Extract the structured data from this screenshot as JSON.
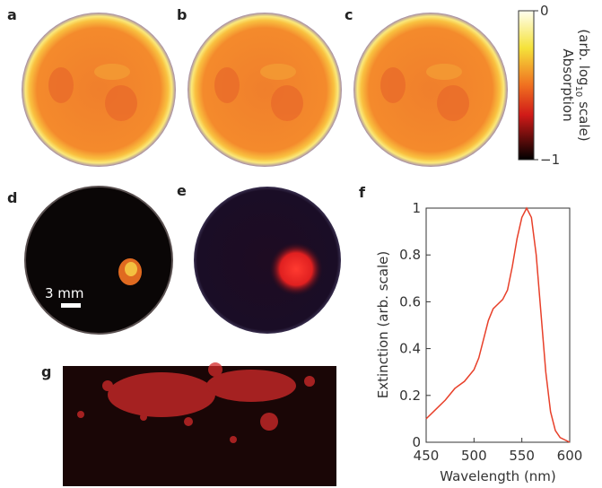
{
  "panels": {
    "a": "a",
    "b": "b",
    "c": "c",
    "d": "d",
    "e": "e",
    "f": "f",
    "g": "g"
  },
  "colorbar": {
    "title_line1": "Absorption",
    "title_line2_pre": "(arb. log",
    "title_line2_sub": "10",
    "title_line2_post": " scale)",
    "ticks": [
      0,
      {
        "value": -1,
        "label": "−1"
      }
    ],
    "lim": [
      -1,
      0
    ]
  },
  "scale_bar": "3 mm",
  "chart_data": {
    "type": "line",
    "xlabel": "Wavelength (nm)",
    "ylabel": "Extinction (arb. scale)",
    "x": [
      450,
      460,
      470,
      480,
      490,
      500,
      505,
      510,
      515,
      520,
      525,
      530,
      535,
      540,
      545,
      550,
      555,
      560,
      565,
      570,
      575,
      580,
      585,
      590,
      600
    ],
    "values": [
      0.1,
      0.14,
      0.18,
      0.23,
      0.26,
      0.31,
      0.36,
      0.44,
      0.52,
      0.57,
      0.59,
      0.61,
      0.65,
      0.75,
      0.87,
      0.96,
      1.0,
      0.96,
      0.8,
      0.55,
      0.3,
      0.13,
      0.05,
      0.02,
      0.0
    ],
    "color": "#e8402a",
    "xlim": [
      450,
      600
    ],
    "ylim": [
      0,
      1
    ],
    "xticks": [
      450,
      500,
      550,
      600
    ],
    "yticks": [
      0,
      0.2,
      0.4,
      0.6,
      0.8,
      1
    ]
  }
}
